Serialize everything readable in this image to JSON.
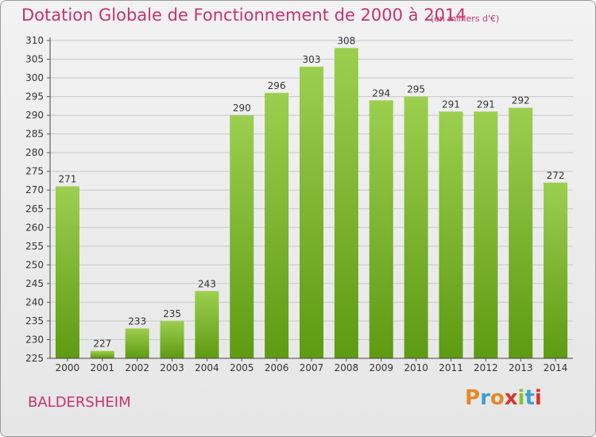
{
  "header": {
    "title": "Dotation Globale de Fonctionnement de 2000 à 2014",
    "unit": "(en milliers d'€)"
  },
  "footer": {
    "commune": "BALDERSHEIM",
    "logo_text": "Proxiti",
    "logo_colors": [
      "#e4892a",
      "#3f9fd1",
      "#e4892a",
      "#d8352a",
      "#8cbf2c",
      "#3f9fd1",
      "#d8352a"
    ]
  },
  "colors": {
    "bar_top": "#9ccf4f",
    "bar_bottom": "#5e9a12",
    "grid": "#c8c8c8",
    "axis_text": "#333333",
    "title": "#c8336b"
  },
  "chart_data": {
    "type": "bar",
    "title": "Dotation Globale de Fonctionnement de 2000 à 2014",
    "subtitle": "(en milliers d'€)",
    "categories": [
      "2000",
      "2001",
      "2002",
      "2003",
      "2004",
      "2005",
      "2006",
      "2007",
      "2008",
      "2009",
      "2010",
      "2011",
      "2012",
      "2013",
      "2014"
    ],
    "values": [
      271,
      227,
      233,
      235,
      243,
      290,
      296,
      303,
      308,
      294,
      295,
      291,
      291,
      292,
      272
    ],
    "ylim": [
      225,
      310
    ],
    "yticks": [
      225,
      230,
      235,
      240,
      245,
      250,
      255,
      260,
      265,
      270,
      275,
      280,
      285,
      290,
      295,
      300,
      305,
      310
    ],
    "grid": true,
    "data_labels": true
  }
}
